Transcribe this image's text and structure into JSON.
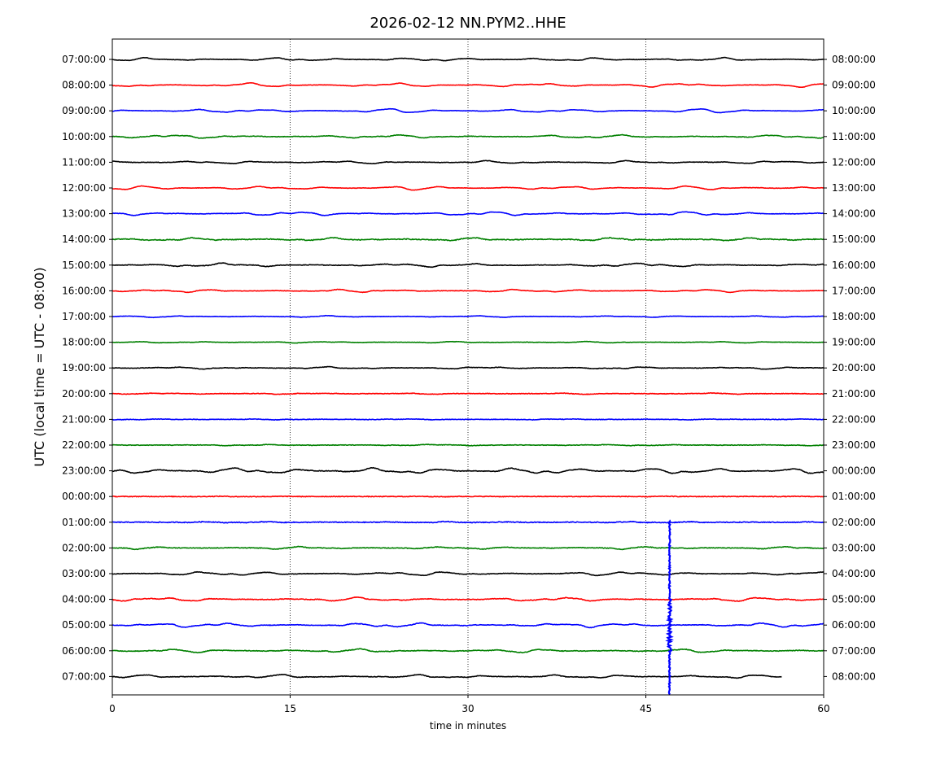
{
  "chart_data": {
    "type": "line",
    "title": "2026-02-12 NN.PYM2..HHE",
    "xlabel": "time in minutes",
    "ylabel": "UTC (local time = UTC - 08:00)",
    "xlim": [
      0,
      60
    ],
    "x_ticks": [
      0,
      15,
      30,
      45,
      60
    ],
    "x_tick_labels": [
      "0",
      "15",
      "30",
      "45",
      "60"
    ],
    "vertical_grid_minutes": [
      15,
      30,
      45
    ],
    "grid": "vertical dotted lines at 15, 30, 45",
    "colors": [
      "#000000",
      "#ff0000",
      "#0000ff",
      "#008000"
    ],
    "left_labels": [
      "07:00:00",
      "08:00:00",
      "09:00:00",
      "10:00:00",
      "11:00:00",
      "12:00:00",
      "13:00:00",
      "14:00:00",
      "15:00:00",
      "16:00:00",
      "17:00:00",
      "18:00:00",
      "19:00:00",
      "20:00:00",
      "21:00:00",
      "22:00:00",
      "23:00:00",
      "00:00:00",
      "01:00:00",
      "02:00:00",
      "03:00:00",
      "04:00:00",
      "05:00:00",
      "06:00:00",
      "07:00:00"
    ],
    "right_labels": [
      "08:00:00",
      "09:00:00",
      "10:00:00",
      "11:00:00",
      "12:00:00",
      "13:00:00",
      "14:00:00",
      "15:00:00",
      "16:00:00",
      "17:00:00",
      "18:00:00",
      "19:00:00",
      "20:00:00",
      "21:00:00",
      "22:00:00",
      "23:00:00",
      "00:00:00",
      "01:00:00",
      "02:00:00",
      "03:00:00",
      "04:00:00",
      "05:00:00",
      "06:00:00",
      "07:00:00",
      "08:00:00"
    ],
    "amplitude_levels": [
      0.7,
      0.85,
      0.85,
      0.7,
      0.6,
      0.8,
      0.8,
      0.65,
      0.75,
      0.6,
      0.35,
      0.3,
      0.45,
      0.25,
      0.2,
      0.25,
      1.4,
      0.1,
      0.25,
      0.55,
      0.8,
      0.8,
      0.9,
      0.7,
      0.75
    ],
    "noise_levels": [
      0.25,
      0.2,
      0.2,
      0.3,
      0.25,
      0.2,
      0.25,
      0.45,
      0.3,
      0.25,
      0.2,
      0.2,
      0.25,
      0.3,
      0.3,
      0.3,
      0.35,
      0.4,
      0.45,
      0.35,
      0.3,
      0.35,
      0.3,
      0.35,
      0.3
    ],
    "trace_end_minute": [
      60,
      60,
      60,
      60,
      60,
      60,
      60,
      60,
      60,
      60,
      60,
      60,
      60,
      60,
      60,
      60,
      60,
      60,
      60,
      60,
      60,
      60,
      60,
      60,
      56.5
    ],
    "event": {
      "minute": 47.0,
      "row_start": 18,
      "row_end": 25,
      "color": "#0000ff"
    }
  }
}
